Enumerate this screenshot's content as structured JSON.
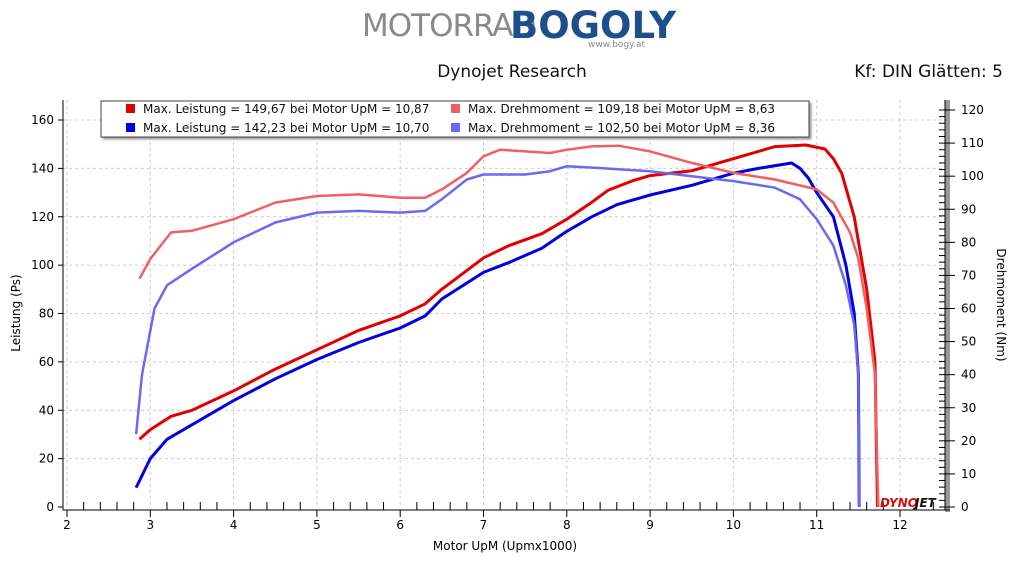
{
  "logo": {
    "text_left": "MOTORRAD",
    "text_right": "BOGOLY",
    "url": "www.bogy.at"
  },
  "header": {
    "title": "Dynojet Research",
    "settings": "Kf: DIN Glätten: 5"
  },
  "watermark": {
    "left": "DYNO",
    "right": "JET"
  },
  "chart_data": {
    "type": "line",
    "title": "Dynojet Research",
    "xlabel": "Motor UpM (Upmx1000)",
    "ylabel": "Leistung (Ps)",
    "y2label": "Drehmoment (Nm)",
    "xlim": [
      2,
      12.5
    ],
    "ylim": [
      0,
      160
    ],
    "y2lim": [
      0,
      120
    ],
    "xticks": [
      "2",
      "3",
      "4",
      "5",
      "6",
      "7",
      "8",
      "9",
      "10",
      "11",
      "12"
    ],
    "yticks": [
      "0",
      "20",
      "40",
      "60",
      "80",
      "100",
      "120",
      "140",
      "160"
    ],
    "y2ticks": [
      "0",
      "10",
      "20",
      "30",
      "40",
      "50",
      "60",
      "70",
      "80",
      "90",
      "100",
      "110",
      "120"
    ],
    "grid": true,
    "legend_position": "top",
    "series": [
      {
        "name": "Max. Leistung = 149,67 bei Motor UpM = 10,87",
        "axis": "left",
        "color": "#e00000",
        "width": 3,
        "x": [
          2.87,
          3.0,
          3.25,
          3.5,
          4.0,
          4.5,
          5.0,
          5.5,
          6.0,
          6.3,
          6.5,
          7.0,
          7.3,
          7.7,
          8.0,
          8.3,
          8.5,
          8.8,
          9.0,
          9.5,
          10.0,
          10.3,
          10.5,
          10.87,
          11.1,
          11.2,
          11.3,
          11.45,
          11.6,
          11.7,
          11.73
        ],
        "y": [
          28,
          32,
          37.5,
          40,
          48,
          57,
          65,
          73,
          79,
          84,
          90,
          103,
          108,
          113,
          119,
          126,
          131,
          135,
          137,
          139,
          144,
          147,
          149,
          149.67,
          148,
          144,
          138,
          120,
          90,
          60,
          0
        ]
      },
      {
        "name": "Max. Leistung = 142,23 bei Motor UpM = 10,70",
        "axis": "left",
        "color": "#0000e0",
        "width": 3,
        "x": [
          2.83,
          3.0,
          3.2,
          3.5,
          4.0,
          4.5,
          5.0,
          5.5,
          6.0,
          6.3,
          6.5,
          7.0,
          7.3,
          7.7,
          8.0,
          8.3,
          8.6,
          9.0,
          9.5,
          10.0,
          10.3,
          10.7,
          10.8,
          10.9,
          11.0,
          11.2,
          11.35,
          11.45,
          11.5,
          11.51
        ],
        "y": [
          8,
          20,
          28,
          34,
          44,
          53,
          61,
          68,
          74,
          79,
          86,
          97,
          101,
          107,
          114,
          120,
          125,
          129,
          133,
          138,
          140,
          142.23,
          140,
          136,
          130,
          120,
          100,
          80,
          55,
          0
        ]
      },
      {
        "name": "Max. Drehmoment = 109,18 bei Motor UpM = 8,63",
        "axis": "right",
        "color": "#f06060",
        "width": 2.5,
        "x": [
          2.87,
          3.0,
          3.25,
          3.5,
          4.0,
          4.5,
          5.0,
          5.5,
          6.0,
          6.3,
          6.5,
          6.8,
          7.0,
          7.2,
          7.5,
          7.8,
          8.0,
          8.3,
          8.63,
          9.0,
          9.5,
          10.0,
          10.5,
          11.0,
          11.2,
          11.4,
          11.5,
          11.6,
          11.7,
          11.74
        ],
        "y": [
          69,
          75,
          83,
          83.5,
          87,
          92,
          94,
          94.5,
          93.5,
          93.5,
          96,
          101,
          106,
          108,
          107.5,
          107,
          108,
          109,
          109.18,
          107.5,
          104,
          101,
          99,
          96,
          92,
          83,
          75,
          60,
          40,
          0
        ]
      },
      {
        "name": "Max. Drehmoment = 102,50 bei Motor UpM = 8,36",
        "axis": "right",
        "color": "#6a6af0",
        "width": 2.5,
        "x": [
          2.83,
          2.9,
          3.05,
          3.2,
          3.5,
          4.0,
          4.5,
          5.0,
          5.5,
          6.0,
          6.3,
          6.5,
          6.8,
          7.0,
          7.5,
          7.8,
          8.0,
          8.36,
          9.0,
          9.5,
          10.0,
          10.5,
          10.8,
          11.0,
          11.2,
          11.35,
          11.45,
          11.5,
          11.51
        ],
        "y": [
          22,
          40,
          60,
          67,
          72,
          80,
          86,
          89,
          89.5,
          89,
          89.5,
          93,
          99,
          100.5,
          100.5,
          101.5,
          103,
          102.5,
          101.5,
          100,
          98.5,
          96.5,
          93,
          87,
          79,
          67,
          55,
          40,
          0
        ]
      }
    ]
  }
}
